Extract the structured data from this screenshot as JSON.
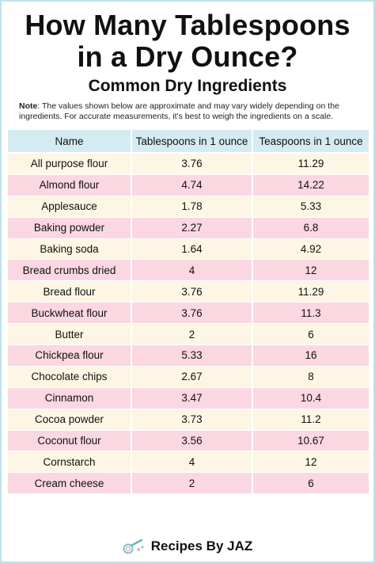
{
  "title_line1": "How Many Tablespoons",
  "title_line2": "in a Dry Ounce?",
  "subtitle": "Common Dry Ingredients",
  "note_label": "Note",
  "note_text": ": The values shown below are approximate and may vary widely depending on the ingredients. For accurate measurements, it's best to weigh the ingredients on a scale.",
  "table": {
    "headers": [
      "Name",
      "Tablespoons in 1 ounce",
      "Teaspoons in 1 ounce"
    ],
    "rows": [
      [
        "All purpose flour",
        "3.76",
        "11.29"
      ],
      [
        "Almond flour",
        "4.74",
        "14.22"
      ],
      [
        "Applesauce",
        "1.78",
        "5.33"
      ],
      [
        "Baking powder",
        "2.27",
        "6.8"
      ],
      [
        "Baking soda",
        "1.64",
        "4.92"
      ],
      [
        "Bread crumbs dried",
        "4",
        "12"
      ],
      [
        "Bread flour",
        "3.76",
        "11.29"
      ],
      [
        "Buckwheat flour",
        "3.76",
        "11.3"
      ],
      [
        "Butter",
        "2",
        "6"
      ],
      [
        "Chickpea flour",
        "5.33",
        "16"
      ],
      [
        "Chocolate chips",
        "2.67",
        "8"
      ],
      [
        "Cinnamon",
        "3.47",
        "10.4"
      ],
      [
        "Cocoa powder",
        "3.73",
        "11.2"
      ],
      [
        "Coconut flour",
        "3.56",
        "10.67"
      ],
      [
        "Cornstarch",
        "4",
        "12"
      ],
      [
        "Cream cheese",
        "2",
        "6"
      ]
    ],
    "row_colors": {
      "odd": "#fdf6e4",
      "even": "#fbd7e2",
      "header": "#d4ecf1"
    }
  },
  "footer": {
    "brand": "Recipes By JAZ",
    "logo_icon": "whisk-logo-icon"
  }
}
